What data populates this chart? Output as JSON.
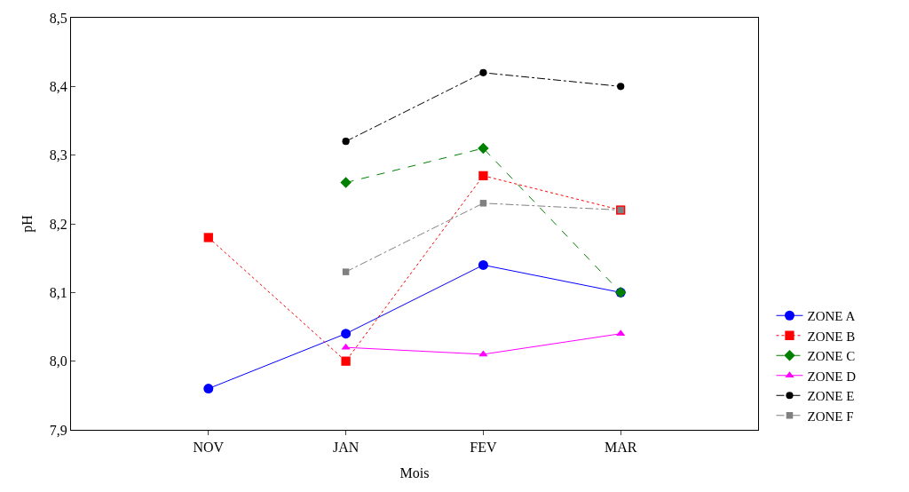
{
  "chart_data": {
    "type": "line",
    "xlabel": "Mois",
    "ylabel": "pH",
    "categories": [
      "NOV",
      "JAN",
      "FEV",
      "MAR"
    ],
    "series": [
      {
        "name": "ZONE A",
        "color": "#0000ff",
        "marker": "circle",
        "line_style": "solid",
        "values": [
          7.96,
          8.04,
          8.14,
          8.1
        ]
      },
      {
        "name": "ZONE B",
        "color": "#ff0000",
        "marker": "square",
        "line_style": "dotted",
        "values": [
          8.18,
          8.0,
          8.27,
          8.22
        ]
      },
      {
        "name": "ZONE C",
        "color": "#008000",
        "marker": "diamond",
        "line_style": "dashed",
        "values": [
          null,
          8.26,
          8.31,
          8.1
        ]
      },
      {
        "name": "ZONE D",
        "color": "#ff00ff",
        "marker": "triangle",
        "line_style": "solid",
        "values": [
          null,
          8.02,
          8.01,
          8.04
        ]
      },
      {
        "name": "ZONE E",
        "color": "#000000",
        "marker": "circle",
        "line_style": "dashdot",
        "values": [
          null,
          8.32,
          8.42,
          8.4
        ]
      },
      {
        "name": "ZONE F",
        "color": "#808080",
        "marker": "square",
        "line_style": "dashdot",
        "values": [
          null,
          8.13,
          8.23,
          8.22
        ]
      }
    ],
    "ylim": [
      7.9,
      8.5
    ],
    "yticks": [
      {
        "value": 7.9,
        "label": "7,9"
      },
      {
        "value": 8.0,
        "label": "8,0"
      },
      {
        "value": 8.1,
        "label": "8,1"
      },
      {
        "value": 8.2,
        "label": "8,2"
      },
      {
        "value": 8.3,
        "label": "8,3"
      },
      {
        "value": 8.4,
        "label": "8,4"
      },
      {
        "value": 8.5,
        "label": "8,5"
      }
    ],
    "legend": "bottom right"
  }
}
